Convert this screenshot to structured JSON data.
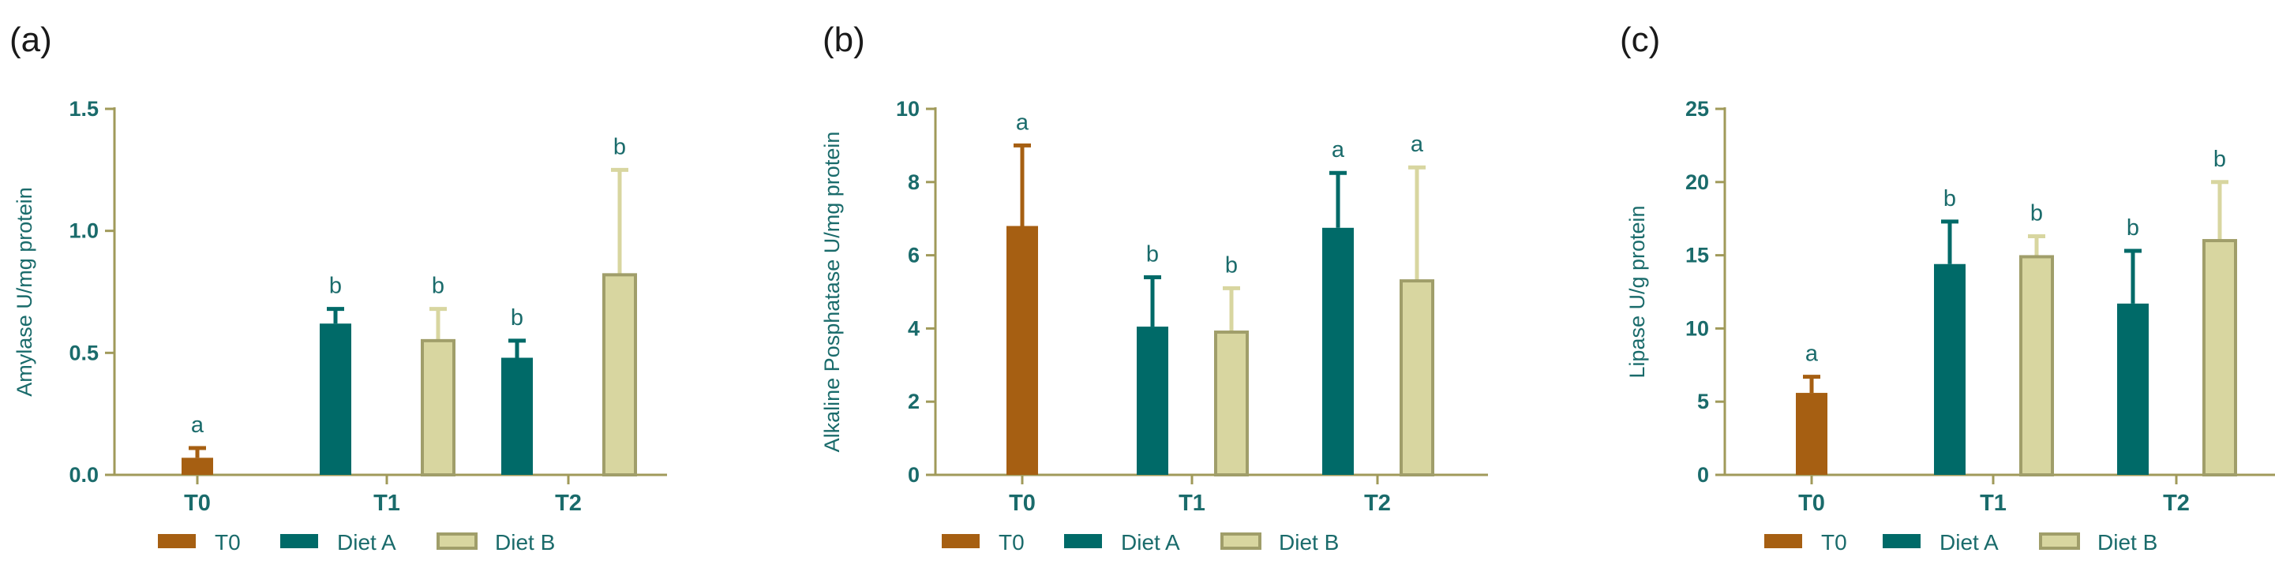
{
  "colors": {
    "axis": "#a09a5a",
    "text": "#1a6b6b",
    "t0": "#a65f12",
    "dietA": "#006a68",
    "dietB_fill": "#d8d6a0",
    "dietB_border": "#a09e6a",
    "dietB_error": "#d8d6a0"
  },
  "chart_data": [
    {
      "type": "bar",
      "panel_label": "(a)",
      "ylabel": "Amylase U/mg protein",
      "ylim": [
        0,
        1.5
      ],
      "yticks": [
        "0.0",
        "0.5",
        "1.0",
        "1.5"
      ],
      "ytick_values": [
        0,
        0.5,
        1.0,
        1.5
      ],
      "categories": [
        "T0",
        "T1",
        "T2"
      ],
      "series": [
        {
          "name": "T0",
          "values": [
            0.07,
            null,
            null
          ],
          "errors": [
            0.04,
            null,
            null
          ],
          "letters": [
            "a",
            null,
            null
          ]
        },
        {
          "name": "Diet A",
          "values": [
            null,
            0.62,
            0.48
          ],
          "errors": [
            null,
            0.06,
            0.07
          ],
          "letters": [
            null,
            "b",
            "b"
          ]
        },
        {
          "name": "Diet B",
          "values": [
            null,
            0.55,
            0.82
          ],
          "errors": [
            null,
            0.13,
            0.43
          ],
          "letters": [
            null,
            "b",
            "b"
          ]
        }
      ],
      "legend": [
        "T0",
        "Diet A",
        "Diet B"
      ]
    },
    {
      "type": "bar",
      "panel_label": "(b)",
      "ylabel": "Alkaline Posphatase U/mg protein",
      "ylim": [
        0,
        10
      ],
      "yticks": [
        "0",
        "2",
        "4",
        "6",
        "8",
        "10"
      ],
      "ytick_values": [
        0,
        2,
        4,
        6,
        8,
        10
      ],
      "categories": [
        "T0",
        "T1",
        "T2"
      ],
      "series": [
        {
          "name": "T0",
          "values": [
            6.8,
            null,
            null
          ],
          "errors": [
            2.2,
            null,
            null
          ],
          "letters": [
            "a",
            null,
            null
          ]
        },
        {
          "name": "Diet A",
          "values": [
            null,
            4.05,
            6.75
          ],
          "errors": [
            null,
            1.35,
            1.5
          ],
          "letters": [
            null,
            "b",
            "a"
          ]
        },
        {
          "name": "Diet B",
          "values": [
            null,
            3.9,
            5.3
          ],
          "errors": [
            null,
            1.2,
            3.1
          ],
          "letters": [
            null,
            "b",
            "a"
          ]
        }
      ],
      "legend": [
        "T0",
        "Diet A",
        "Diet B"
      ]
    },
    {
      "type": "bar",
      "panel_label": "(c)",
      "ylabel": "Lipase U/g protein",
      "ylim": [
        0,
        25
      ],
      "yticks": [
        "0",
        "5",
        "10",
        "15",
        "20",
        "25"
      ],
      "ytick_values": [
        0,
        5,
        10,
        15,
        20,
        25
      ],
      "categories": [
        "T0",
        "T1",
        "T2"
      ],
      "series": [
        {
          "name": "T0",
          "values": [
            5.6,
            null,
            null
          ],
          "errors": [
            1.1,
            null,
            null
          ],
          "letters": [
            "a",
            null,
            null
          ]
        },
        {
          "name": "Diet A",
          "values": [
            null,
            14.4,
            11.7
          ],
          "errors": [
            null,
            2.9,
            3.6
          ],
          "letters": [
            null,
            "b",
            "b"
          ]
        },
        {
          "name": "Diet B",
          "values": [
            null,
            14.9,
            16.0
          ],
          "errors": [
            null,
            1.4,
            4.0
          ],
          "letters": [
            null,
            "b",
            "b"
          ]
        }
      ],
      "legend": [
        "T0",
        "Diet A",
        "Diet B"
      ]
    }
  ]
}
